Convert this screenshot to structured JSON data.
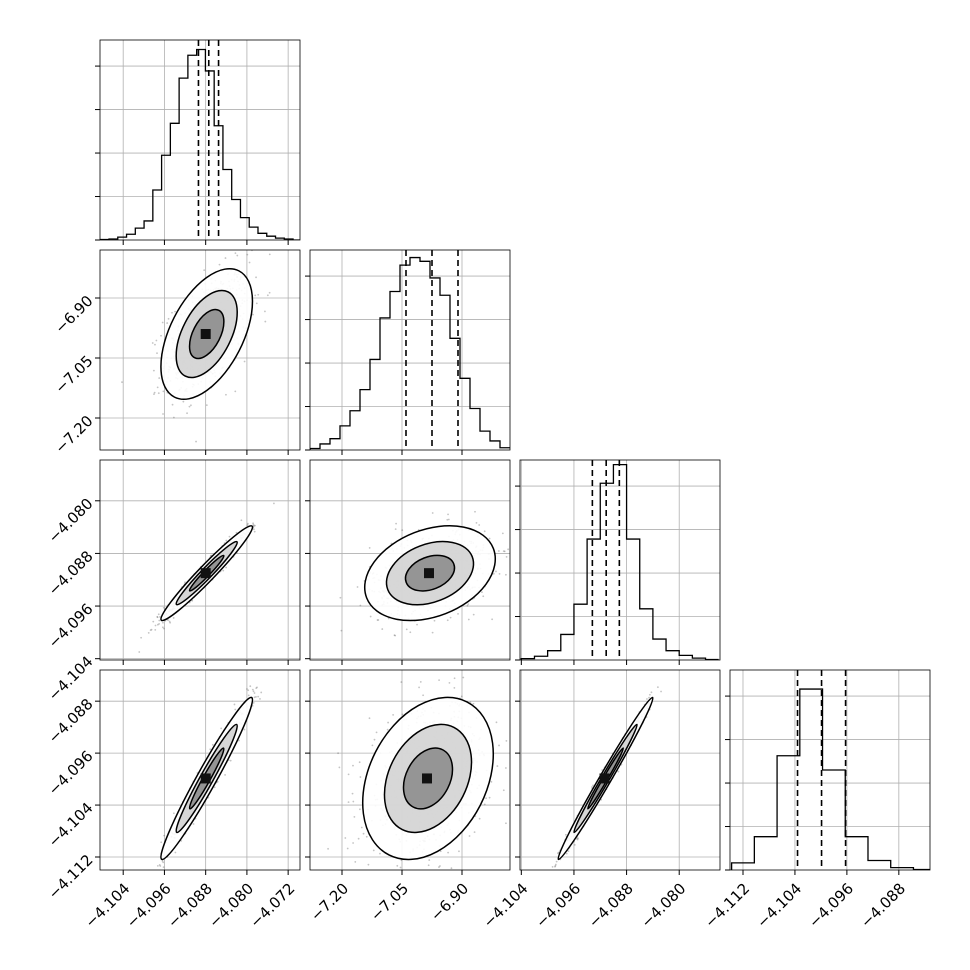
{
  "chart_data": {
    "type": "corner",
    "parameters": [
      {
        "x_ticks": [
          "−4.104",
          "−4.096",
          "−4.088",
          "−4.080",
          "−4.072"
        ],
        "y_ticks": [],
        "range": [
          -4.1085,
          -4.0697
        ],
        "quantiles": [
          -4.0894,
          -4.0874,
          -4.0855
        ],
        "hist_centers": [
          -4.1076,
          -4.1059,
          -4.1042,
          -4.1025,
          -4.1008,
          -4.0991,
          -4.0974,
          -4.0957,
          -4.094,
          -4.0923,
          -4.0906,
          -4.0889,
          -4.0872,
          -4.0855,
          -4.0838,
          -4.0821,
          -4.0804,
          -4.0787,
          -4.077,
          -4.0753,
          -4.0736,
          -4.0719,
          -4.0702
        ],
        "hist_counts": [
          1,
          2,
          6,
          12,
          25,
          40,
          105,
          178,
          245,
          340,
          388,
          400,
          355,
          240,
          148,
          85,
          47,
          27,
          14,
          8,
          4,
          2,
          0
        ],
        "hist_ylim": [
          0,
          420
        ]
      },
      {
        "x_ticks": [
          "−7.20",
          "−7.05",
          "−6.90"
        ],
        "y_ticks": [
          "−6.90",
          "−7.05",
          "−7.20"
        ],
        "range": [
          -7.28,
          -6.78
        ],
        "quantiles": [
          -7.04,
          -6.975,
          -6.91
        ],
        "hist_centers": [
          -7.2675,
          -7.2425,
          -7.2175,
          -7.1925,
          -7.1675,
          -7.1425,
          -7.1175,
          -7.0925,
          -7.0675,
          -7.0425,
          -7.0175,
          -6.9925,
          -6.9675,
          -6.9425,
          -6.9175,
          -6.8925,
          -6.8675,
          -6.8425,
          -6.8175,
          -6.7925
        ],
        "hist_counts": [
          2,
          8,
          15,
          32,
          52,
          80,
          120,
          175,
          210,
          245,
          255,
          250,
          228,
          205,
          148,
          95,
          55,
          25,
          12,
          3
        ],
        "hist_ylim": [
          0,
          265
        ]
      },
      {
        "x_ticks": [
          "−4.104",
          "−4.096",
          "−4.088",
          "−4.080"
        ],
        "y_ticks": [
          "−4.080",
          "−4.088",
          "−4.096",
          "−4.104"
        ],
        "range": [
          -4.1042,
          -4.0738
        ],
        "quantiles": [
          -4.0932,
          -4.0911,
          -4.0891
        ],
        "hist_centers": [
          -4.103,
          -4.101,
          -4.099,
          -4.097,
          -4.095,
          -4.093,
          -4.091,
          -4.089,
          -4.087,
          -4.085,
          -4.083,
          -4.081,
          -4.079,
          -4.077,
          -4.075
        ],
        "hist_counts": [
          3,
          8,
          20,
          55,
          120,
          260,
          380,
          420,
          260,
          110,
          45,
          20,
          10,
          4,
          1
        ],
        "hist_ylim": [
          0,
          430
        ]
      },
      {
        "x_ticks": [
          "−4.112",
          "−4.104",
          "−4.096",
          "−4.088"
        ],
        "y_ticks": [
          "−4.088",
          "−4.096",
          "−4.104",
          "−4.112"
        ],
        "range": [
          -4.114,
          -4.0832
        ],
        "quantiles": [
          -4.1036,
          -4.0999,
          -4.0962
        ],
        "hist_centers": [
          -4.112,
          -4.1085,
          -4.105,
          -4.1015,
          -4.098,
          -4.0945,
          -4.091,
          -4.0875,
          -4.084
        ],
        "hist_counts": [
          15,
          70,
          240,
          380,
          210,
          70,
          20,
          5,
          1
        ],
        "hist_ylim": [
          0,
          420
        ]
      }
    ],
    "pairs": [
      {
        "row": 1,
        "col": 0,
        "center": [
          -4.0878,
          -6.99
        ],
        "sigma": [
          0.0037,
          0.068
        ],
        "rho": 0.5
      },
      {
        "row": 2,
        "col": 0,
        "center": [
          -4.0878,
          -4.091
        ],
        "sigma": [
          0.0037,
          0.003
        ],
        "rho": 0.97
      },
      {
        "row": 2,
        "col": 1,
        "center": [
          -6.98,
          -4.091
        ],
        "sigma": [
          0.068,
          0.003
        ],
        "rho": 0.3
      },
      {
        "row": 3,
        "col": 0,
        "center": [
          -4.0878,
          -4.0999
        ],
        "sigma": [
          0.0037,
          0.0052
        ],
        "rho": 0.97
      },
      {
        "row": 3,
        "col": 1,
        "center": [
          -6.985,
          -4.0999
        ],
        "sigma": [
          0.068,
          0.0052
        ],
        "rho": 0.3
      },
      {
        "row": 3,
        "col": 2,
        "center": [
          -4.0912,
          -4.0999
        ],
        "sigma": [
          0.003,
          0.0052
        ],
        "rho": 0.99
      }
    ],
    "histogram_style": "step",
    "quantile_lines": "dashed",
    "grid": true,
    "colors": {
      "line": "#000000",
      "grid": "#b0b0b0",
      "points": "#555555",
      "background": "#ffffff"
    }
  }
}
